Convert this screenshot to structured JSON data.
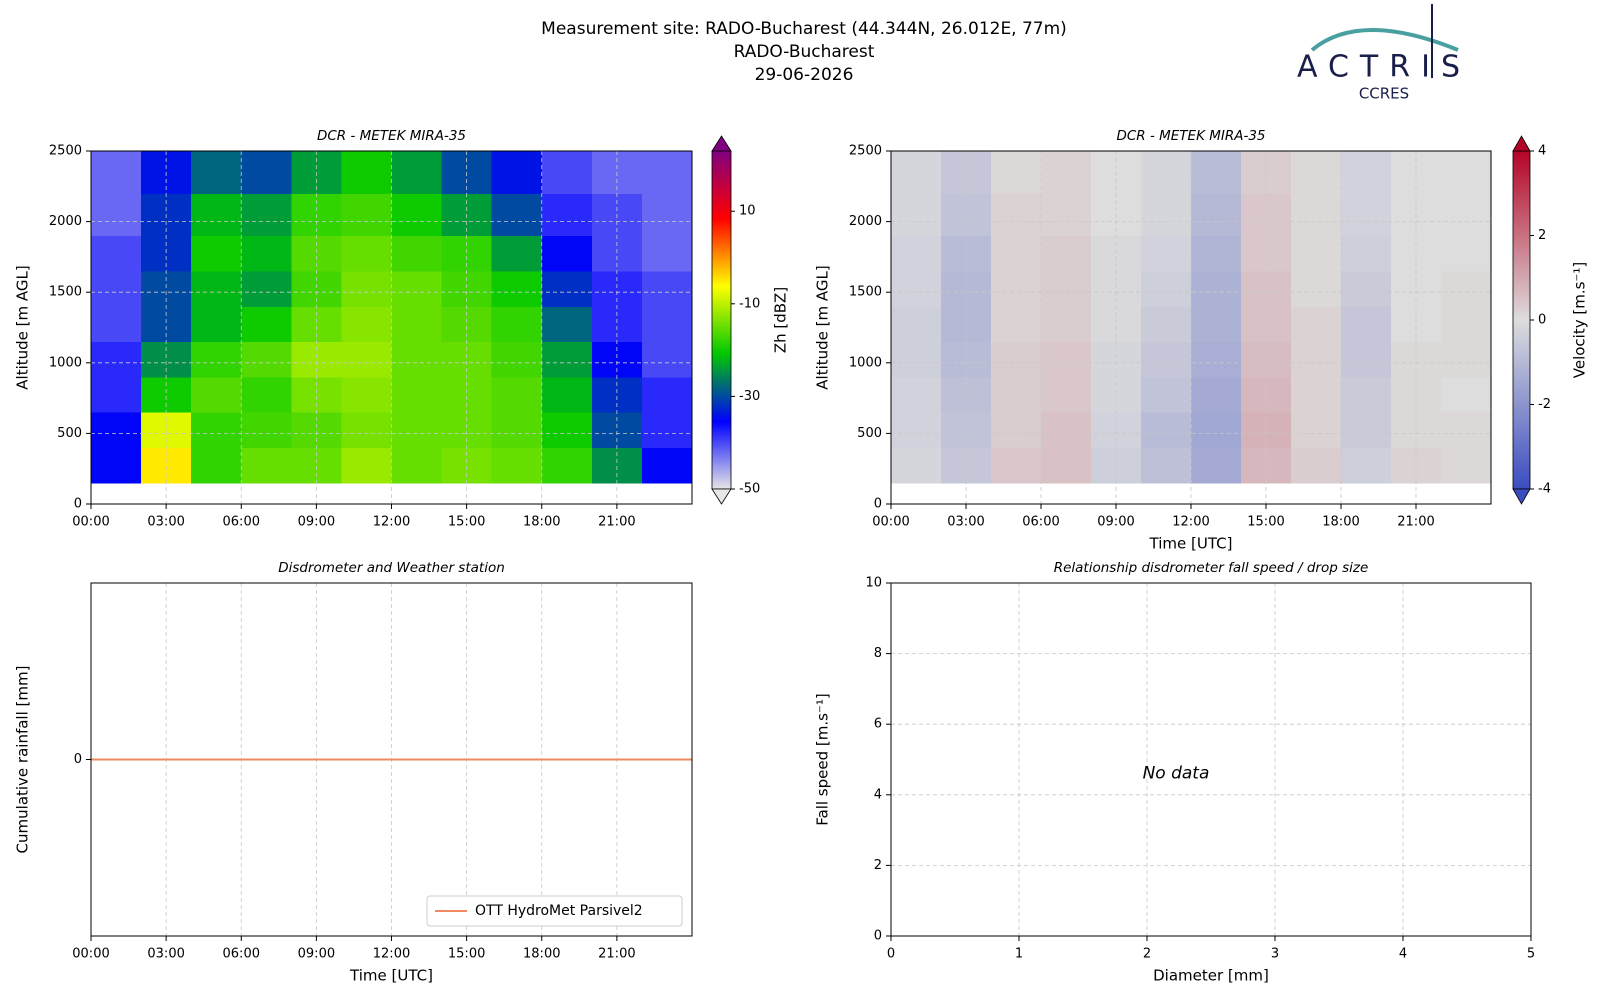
{
  "header": {
    "title": [
      "Measurement site: RADO-Bucharest (44.344N, 26.012E, 77m)",
      "RADO-Bucharest",
      "29-06-2026"
    ],
    "logo": {
      "text": "ACTRIS",
      "subtext": "CCRES"
    }
  },
  "chart_data": [
    {
      "type": "heatmap",
      "title": "DCR - METEK MIRA-35",
      "ylabel": "Altitude [m AGL]",
      "colorbar_label": "Zh [dBZ]",
      "xlim": [
        0,
        24
      ],
      "xticks": [
        {
          "value": 0,
          "label": "00:00"
        },
        {
          "value": 3,
          "label": "03:00"
        },
        {
          "value": 6,
          "label": "06:00"
        },
        {
          "value": 9,
          "label": "09:00"
        },
        {
          "value": 12,
          "label": "12:00"
        },
        {
          "value": 15,
          "label": "15:00"
        },
        {
          "value": 18,
          "label": "18:00"
        },
        {
          "value": 21,
          "label": "21:00"
        }
      ],
      "ylim": [
        0,
        2500
      ],
      "yticks": [
        0,
        500,
        1000,
        1500,
        2000,
        2500
      ],
      "grid": true,
      "x_edges": [
        0,
        2,
        4,
        6,
        8,
        10,
        12,
        14,
        16,
        18,
        20,
        22,
        24
      ],
      "y_edges": [
        150,
        400,
        650,
        900,
        1150,
        1400,
        1650,
        1900,
        2200,
        2500
      ],
      "z": [
        [
          -35,
          -5,
          -18,
          -15,
          -15,
          -12,
          -15,
          -14,
          -15,
          -18,
          -25,
          -35
        ],
        [
          -35,
          -8,
          -18,
          -17,
          -16,
          -14,
          -15,
          -15,
          -16,
          -20,
          -30,
          -38
        ],
        [
          -38,
          -20,
          -16,
          -18,
          -14,
          -13,
          -15,
          -15,
          -16,
          -22,
          -32,
          -38
        ],
        [
          -38,
          -25,
          -18,
          -16,
          -12,
          -12,
          -15,
          -15,
          -17,
          -24,
          -35,
          -40
        ],
        [
          -40,
          -30,
          -22,
          -20,
          -15,
          -13,
          -15,
          -16,
          -18,
          -28,
          -38,
          -40
        ],
        [
          -40,
          -30,
          -22,
          -24,
          -17,
          -14,
          -15,
          -17,
          -20,
          -32,
          -38,
          -40
        ],
        [
          -40,
          -32,
          -20,
          -22,
          -16,
          -15,
          -17,
          -18,
          -24,
          -35,
          -40,
          -42
        ],
        [
          -42,
          -32,
          -22,
          -24,
          -18,
          -17,
          -20,
          -24,
          -30,
          -38,
          -40,
          -42
        ],
        [
          -42,
          -34,
          -28,
          -30,
          -24,
          -20,
          -24,
          -30,
          -34,
          -40,
          -42,
          -42
        ]
      ],
      "zlim": [
        -50,
        23
      ],
      "zticks": [
        -50,
        -30,
        -10,
        10
      ],
      "colorbar_extend": "both",
      "colorscale": [
        "#e6e6e6",
        "#0000ff",
        "#00c800",
        "#ffff00",
        "#ff0000",
        "#800080"
      ]
    },
    {
      "type": "heatmap",
      "title": "DCR - METEK MIRA-35",
      "xlabel": "Time [UTC]",
      "ylabel": "Altitude [m AGL]",
      "colorbar_label": "Velocity [m.s⁻¹]",
      "xlim": [
        0,
        24
      ],
      "xticks": [
        {
          "value": 0,
          "label": "00:00"
        },
        {
          "value": 3,
          "label": "03:00"
        },
        {
          "value": 6,
          "label": "06:00"
        },
        {
          "value": 9,
          "label": "09:00"
        },
        {
          "value": 12,
          "label": "12:00"
        },
        {
          "value": 15,
          "label": "15:00"
        },
        {
          "value": 18,
          "label": "18:00"
        },
        {
          "value": 21,
          "label": "21:00"
        }
      ],
      "ylim": [
        0,
        2500
      ],
      "yticks": [
        0,
        500,
        1000,
        1500,
        2000,
        2500
      ],
      "grid": true,
      "x_edges": [
        0,
        2,
        4,
        6,
        8,
        10,
        12,
        14,
        16,
        18,
        20,
        22,
        24
      ],
      "y_edges": [
        150,
        400,
        650,
        900,
        1150,
        1400,
        1650,
        1900,
        2200,
        2500
      ],
      "z": [
        [
          -0.2,
          -0.6,
          0.4,
          0.5,
          -0.4,
          -0.8,
          -1.4,
          0.7,
          0.3,
          -0.4,
          0.2,
          0.1
        ],
        [
          -0.3,
          -0.7,
          0.3,
          0.5,
          -0.3,
          -0.9,
          -1.5,
          0.8,
          0.2,
          -0.5,
          0.1,
          0.1
        ],
        [
          -0.3,
          -0.8,
          0.3,
          0.4,
          -0.2,
          -0.7,
          -1.4,
          0.7,
          0.2,
          -0.5,
          0.1,
          0.0
        ],
        [
          -0.4,
          -0.9,
          0.3,
          0.4,
          -0.2,
          -0.6,
          -1.3,
          0.6,
          0.2,
          -0.6,
          0.1,
          0.1
        ],
        [
          -0.4,
          -1.0,
          0.2,
          0.3,
          -0.1,
          -0.5,
          -1.2,
          0.5,
          0.2,
          -0.6,
          0.0,
          0.1
        ],
        [
          -0.3,
          -1.0,
          0.2,
          0.3,
          -0.1,
          -0.4,
          -1.2,
          0.5,
          0.1,
          -0.5,
          0.0,
          0.1
        ],
        [
          -0.3,
          -0.9,
          0.2,
          0.3,
          -0.1,
          -0.3,
          -1.1,
          0.4,
          0.1,
          -0.4,
          0.0,
          0.0
        ],
        [
          -0.2,
          -0.7,
          0.2,
          0.2,
          0.0,
          -0.2,
          -1.0,
          0.4,
          0.1,
          -0.3,
          0.0,
          0.0
        ],
        [
          -0.2,
          -0.6,
          0.1,
          0.2,
          0.0,
          -0.2,
          -0.9,
          0.3,
          0.1,
          -0.3,
          0.0,
          0.0
        ]
      ],
      "zlim": [
        -4,
        4
      ],
      "zticks": [
        -4,
        -2,
        0,
        2,
        4
      ],
      "colorbar_extend": "both",
      "colorscale": [
        "#3b4cc0",
        "#dddddd",
        "#b40426"
      ]
    },
    {
      "type": "line",
      "title": "Disdrometer and Weather station",
      "xlabel": "Time [UTC]",
      "ylabel": "Cumulative rainfall [mm]",
      "xlim": [
        0,
        24
      ],
      "xticks": [
        {
          "value": 0,
          "label": "00:00"
        },
        {
          "value": 3,
          "label": "03:00"
        },
        {
          "value": 6,
          "label": "06:00"
        },
        {
          "value": 9,
          "label": "09:00"
        },
        {
          "value": 12,
          "label": "12:00"
        },
        {
          "value": 15,
          "label": "15:00"
        },
        {
          "value": 18,
          "label": "18:00"
        },
        {
          "value": 21,
          "label": "21:00"
        }
      ],
      "ylim": [
        -1,
        1
      ],
      "yticks": [
        0
      ],
      "grid": true,
      "legend": "lower right",
      "x": [
        0,
        24
      ],
      "series": [
        {
          "name": "OTT HydroMet Parsivel2",
          "color": "#ee8a5e",
          "values": [
            0,
            0
          ]
        }
      ]
    },
    {
      "type": "scatter",
      "title": "Relationship disdrometer fall speed / drop size",
      "xlabel": "Diameter [mm]",
      "ylabel": "Fall speed [m.s⁻¹]",
      "annotation": "No data",
      "xlim": [
        0,
        5
      ],
      "xticks": [
        0,
        1,
        2,
        3,
        4,
        5
      ],
      "ylim": [
        0,
        10
      ],
      "yticks": [
        0,
        2,
        4,
        6,
        8,
        10
      ],
      "grid": true,
      "x": [],
      "values": []
    }
  ]
}
